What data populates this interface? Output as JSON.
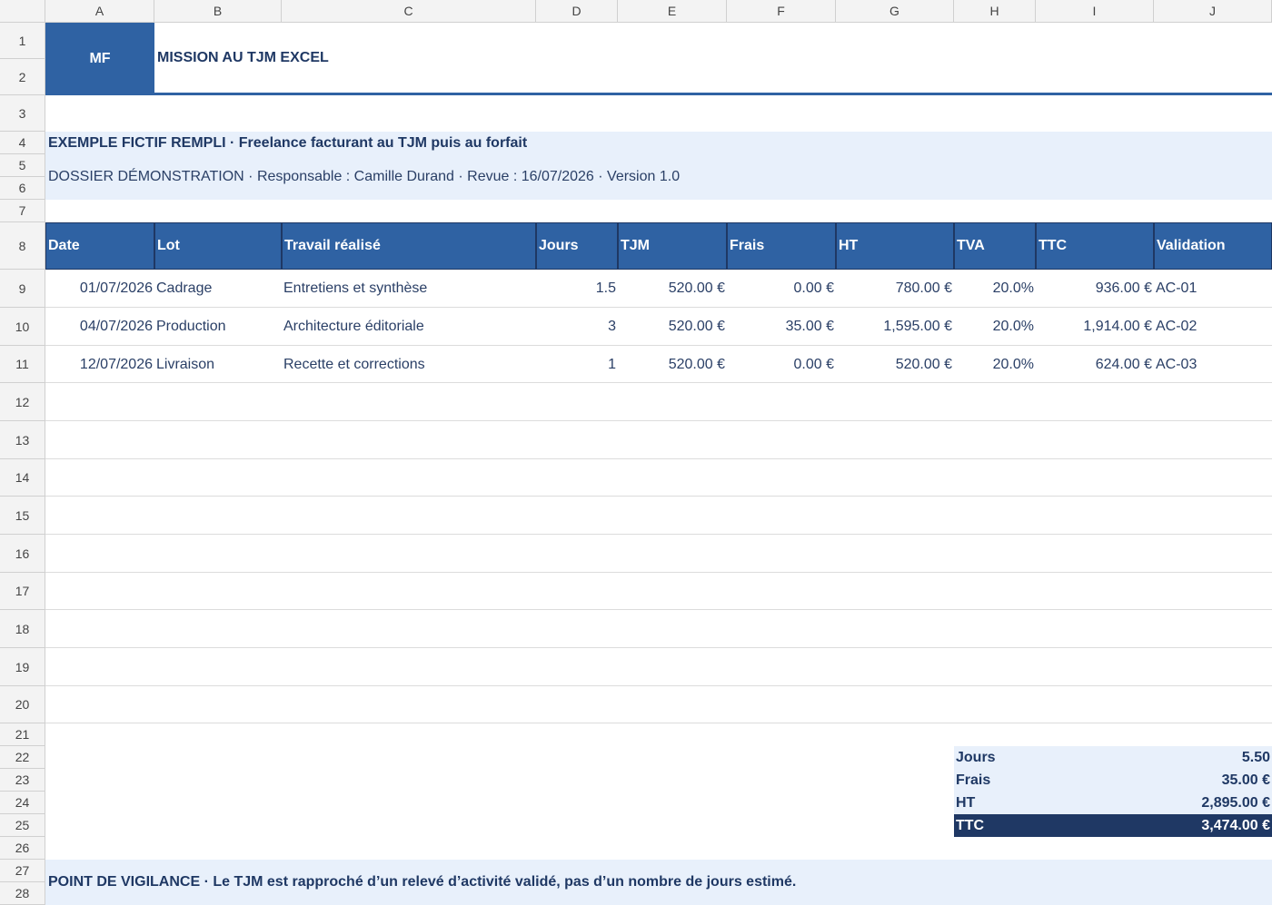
{
  "columns": [
    "A",
    "B",
    "C",
    "D",
    "E",
    "F",
    "G",
    "H",
    "I",
    "J"
  ],
  "row_numbers": [
    1,
    2,
    3,
    4,
    5,
    6,
    7,
    8,
    9,
    10,
    11,
    12,
    13,
    14,
    15,
    16,
    17,
    18,
    19,
    20,
    21,
    22,
    23,
    24,
    25,
    26,
    27,
    28
  ],
  "header": {
    "logo": "MF",
    "title": "MISSION AU TJM EXCEL"
  },
  "banner": {
    "title": "EXEMPLE FICTIF REMPLI · Freelance facturant au TJM puis au forfait",
    "subtitle": "DOSSIER DÉMONSTRATION · Responsable : Camille Durand · Revue : 16/07/2026 · Version 1.0"
  },
  "table": {
    "headers": [
      "Date",
      "Lot",
      "Travail réalisé",
      "Jours",
      "TJM",
      "Frais",
      "HT",
      "TVA",
      "TTC",
      "Validation"
    ],
    "rows": [
      [
        "01/07/2026",
        "Cadrage",
        "Entretiens et synthèse",
        "1.5",
        "520.00 €",
        "0.00 €",
        "780.00 €",
        "20.0%",
        "936.00 €",
        "AC-01"
      ],
      [
        "04/07/2026",
        "Production",
        "Architecture éditoriale",
        "3",
        "520.00 €",
        "35.00 €",
        "1,595.00 €",
        "20.0%",
        "1,914.00 €",
        "AC-02"
      ],
      [
        "12/07/2026",
        "Livraison",
        "Recette et corrections",
        "1",
        "520.00 €",
        "0.00 €",
        "520.00 €",
        "20.0%",
        "624.00 €",
        "AC-03"
      ]
    ]
  },
  "summary": [
    [
      "Jours",
      "5.50"
    ],
    [
      "Frais",
      "35.00 €"
    ],
    [
      "HT",
      "2,895.00 €"
    ],
    [
      "TTC",
      "3,474.00 €"
    ]
  ],
  "note": "POINT DE VIGILANCE · Le TJM est rapproché d’un relevé d’activité validé, pas d’un nombre de jours estimé."
}
